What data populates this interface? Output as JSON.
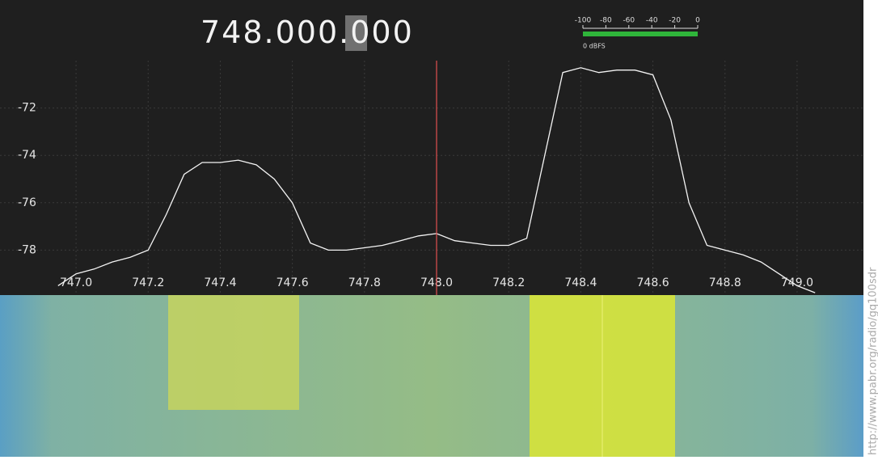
{
  "frequency_display": {
    "prefix": "748.000.",
    "selected": "0",
    "suffix": "00"
  },
  "meter": {
    "ticks": [
      "-100",
      "-80",
      "-60",
      "-40",
      "-20",
      "0"
    ],
    "label": "0 dBFS"
  },
  "spectrum": {
    "ylim": [
      -80,
      -70
    ],
    "yticks": [
      -72,
      -74,
      -76,
      -78
    ],
    "xlim": [
      746.807,
      749.184
    ],
    "xticks": [
      {
        "value": 747,
        "label": "747.0"
      },
      747.2,
      747.4,
      747.6,
      747.8,
      {
        "value": 748,
        "label": "748.0"
      },
      748.2,
      748.4,
      748.6,
      748.8,
      {
        "value": 749,
        "label": "749.0"
      }
    ],
    "center": 748,
    "x": [
      746.95,
      747.0,
      747.05,
      747.1,
      747.15,
      747.2,
      747.25,
      747.3,
      747.35,
      747.4,
      747.45,
      747.5,
      747.55,
      747.6,
      747.65,
      747.7,
      747.75,
      747.8,
      747.85,
      747.9,
      747.95,
      748.0,
      748.05,
      748.1,
      748.15,
      748.2,
      748.25,
      748.3,
      748.35,
      748.4,
      748.45,
      748.5,
      748.55,
      748.6,
      748.65,
      748.7,
      748.75,
      748.8,
      748.85,
      748.9,
      748.95,
      749.0,
      749.05
    ],
    "values": [
      -79.5,
      -79,
      -78.8,
      -78.5,
      -78.3,
      -78,
      -76.5,
      -74.8,
      -74.3,
      -74.3,
      -74.2,
      -74.4,
      -75,
      -76,
      -77.7,
      -78,
      -78,
      -77.9,
      -77.8,
      -77.6,
      -77.4,
      -77.3,
      -77.6,
      -77.7,
      -77.8,
      -77.8,
      -77.5,
      -74,
      -70.5,
      -70.3,
      -70.5,
      -70.4,
      -70.4,
      -70.6,
      -72.5,
      -76,
      -77.8,
      -78,
      -78.2,
      -78.5,
      -79,
      -79.5,
      -79.8
    ]
  },
  "watermark": "http://www.pabr.org/radio/gq100sdr"
}
